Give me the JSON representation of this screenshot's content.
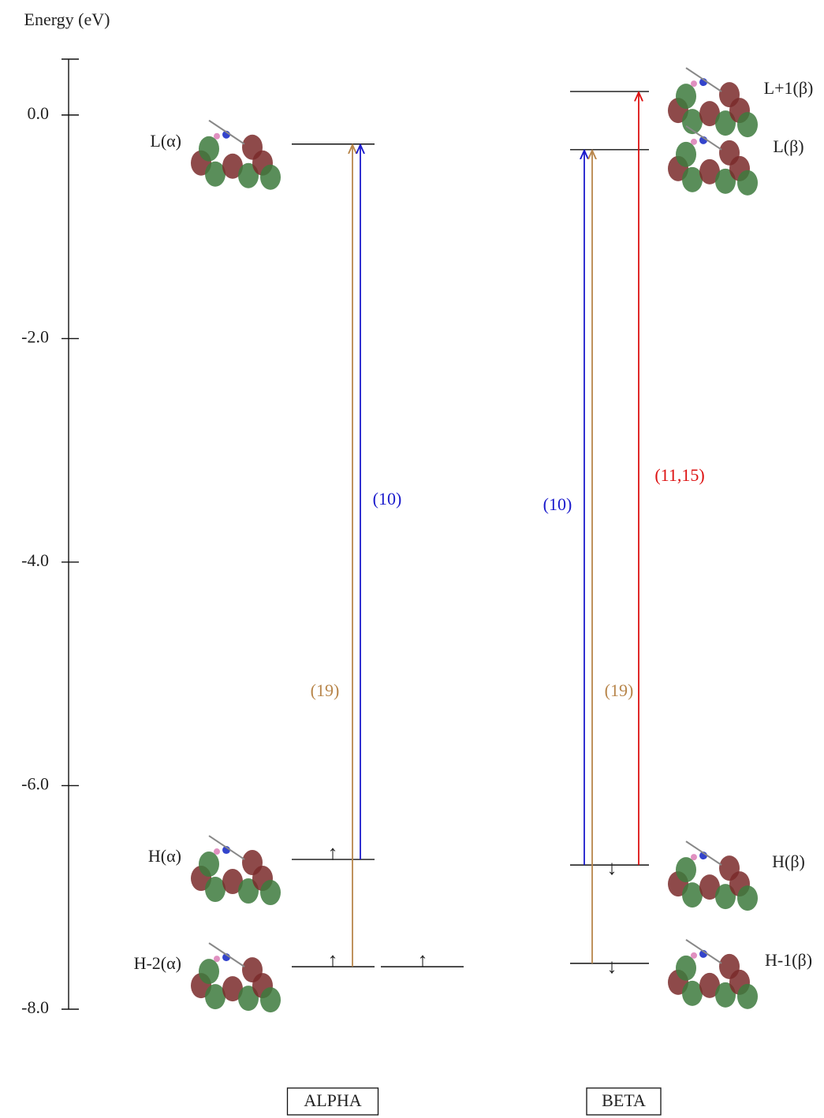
{
  "chart_data": {
    "type": "energy-levels",
    "y_label": "Energy (eV)",
    "ylim": [
      -8.0,
      0.5
    ],
    "yticks": [
      {
        "value": 0,
        "label": "0.0"
      },
      {
        "value": -2,
        "label": "-2.0"
      },
      {
        "value": -4,
        "label": "-4.0"
      },
      {
        "value": -6,
        "label": "-6.0"
      },
      {
        "value": -8,
        "label": "-8.0"
      }
    ],
    "columns": [
      {
        "name": "ALPHA",
        "levels": [
          {
            "label": "L(α)",
            "energy": -0.26
          },
          {
            "label": "H(α)",
            "energy": -6.66,
            "electrons": "↑"
          },
          {
            "label": "H-2(α)",
            "energy": -7.62,
            "electrons": "↑"
          },
          {
            "energy": -7.62,
            "electrons": "↑"
          }
        ],
        "transitions": [
          {
            "from": "H-2(α)",
            "to": "L(α)",
            "label": "(19)",
            "color": "#b8864b"
          },
          {
            "from": "H(α)",
            "to": "L(α)",
            "label": "(10)",
            "color": "#1a1acc"
          }
        ]
      },
      {
        "name": "BETA",
        "levels": [
          {
            "label": "L+1(β)",
            "energy": 0.21
          },
          {
            "label": "L(β)",
            "energy": -0.31
          },
          {
            "label": "H(β)",
            "energy": -6.71,
            "electrons": "↓"
          },
          {
            "label": "H-1(β)",
            "energy": -7.59,
            "electrons": "↓"
          }
        ],
        "transitions": [
          {
            "from": "H(β)",
            "to": "L(β)",
            "label": "(10)",
            "color": "#1a1acc"
          },
          {
            "from": "H-1(β)",
            "to": "L(β)",
            "label": "(19)",
            "color": "#b8864b"
          },
          {
            "from": "H(β)",
            "to": "L+1(β)",
            "label": "(11,15)",
            "color": "#dd1111"
          }
        ]
      }
    ]
  }
}
